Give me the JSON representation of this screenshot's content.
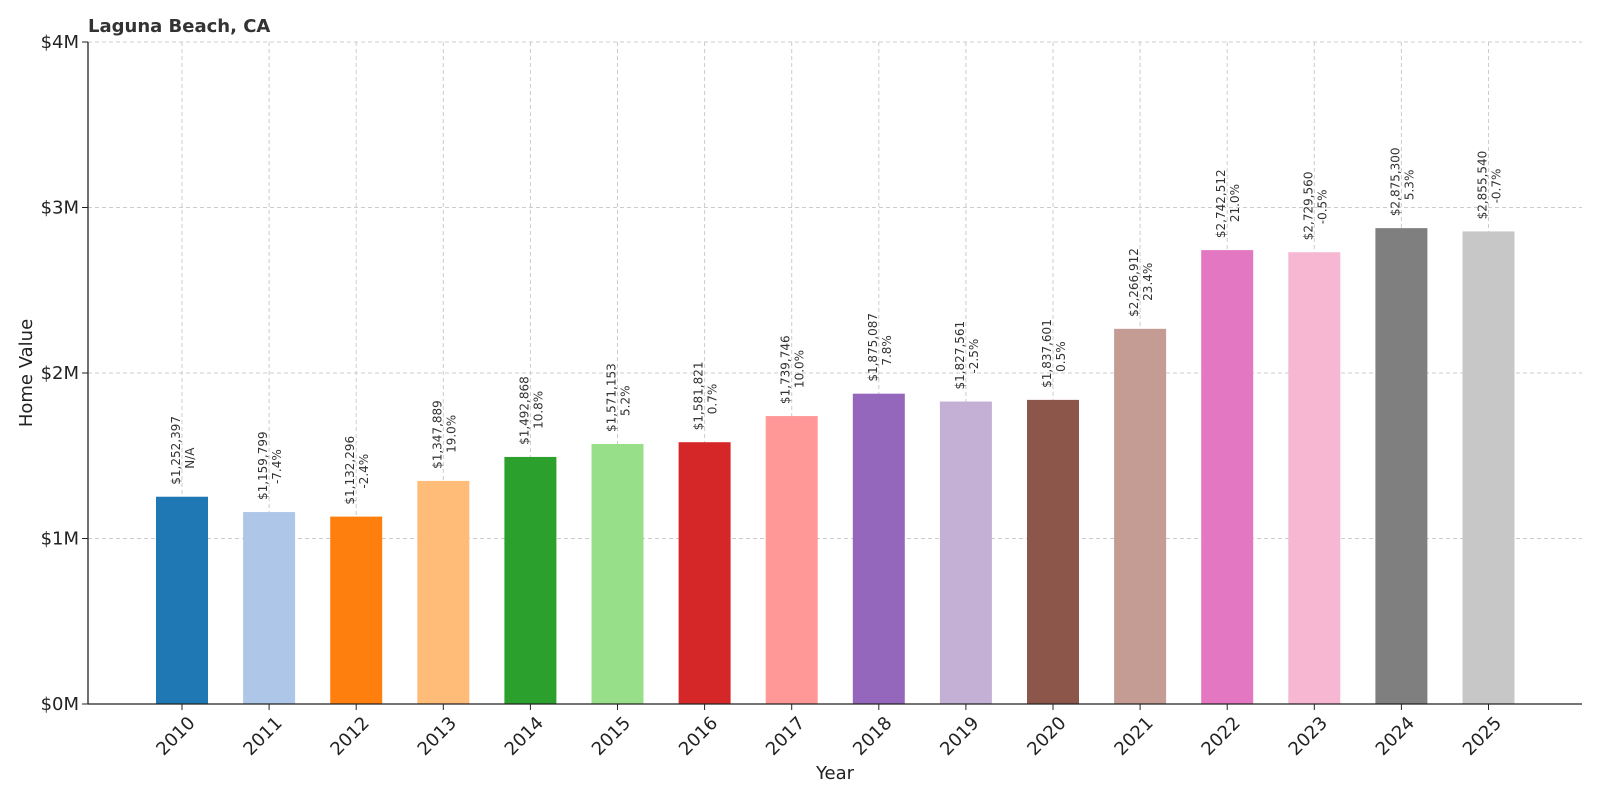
{
  "chart_data": {
    "type": "bar",
    "title": "Laguna Beach, CA",
    "xlabel": "Year",
    "ylabel": "Home Value",
    "ylim": [
      0,
      4000000
    ],
    "yticks": [
      0,
      1000000,
      2000000,
      3000000,
      4000000
    ],
    "ytick_labels": [
      "$0M",
      "$1M",
      "$2M",
      "$3M",
      "$4M"
    ],
    "grid": true,
    "categories": [
      "2010",
      "2011",
      "2012",
      "2013",
      "2014",
      "2015",
      "2016",
      "2017",
      "2018",
      "2019",
      "2020",
      "2021",
      "2022",
      "2023",
      "2024",
      "2025"
    ],
    "values": [
      1252397,
      1159799,
      1132296,
      1347889,
      1492868,
      1571153,
      1581821,
      1739746,
      1875087,
      1827561,
      1837601,
      2266912,
      2742512,
      2729560,
      2875300,
      2855540
    ],
    "value_labels": [
      "$1,252,397",
      "$1,159,799",
      "$1,132,296",
      "$1,347,889",
      "$1,492,868",
      "$1,571,153",
      "$1,581,821",
      "$1,739,746",
      "$1,875,087",
      "$1,827,561",
      "$1,837,601",
      "$2,266,912",
      "$2,742,512",
      "$2,729,560",
      "$2,875,300",
      "$2,855,540"
    ],
    "change_labels": [
      "N/A",
      "-7.4%",
      "-2.4%",
      "19.0%",
      "10.8%",
      "5.2%",
      "0.7%",
      "10.0%",
      "7.8%",
      "-2.5%",
      "0.5%",
      "23.4%",
      "21.0%",
      "-0.5%",
      "5.3%",
      "-0.7%"
    ],
    "colors": [
      "#1f77b4",
      "#aec7e8",
      "#ff7f0e",
      "#ffbb78",
      "#2ca02c",
      "#98df8a",
      "#d62728",
      "#ff9896",
      "#9467bd",
      "#c5b0d5",
      "#8c564b",
      "#c49c94",
      "#e377c2",
      "#f7b6d2",
      "#7f7f7f",
      "#c7c7c7"
    ]
  }
}
